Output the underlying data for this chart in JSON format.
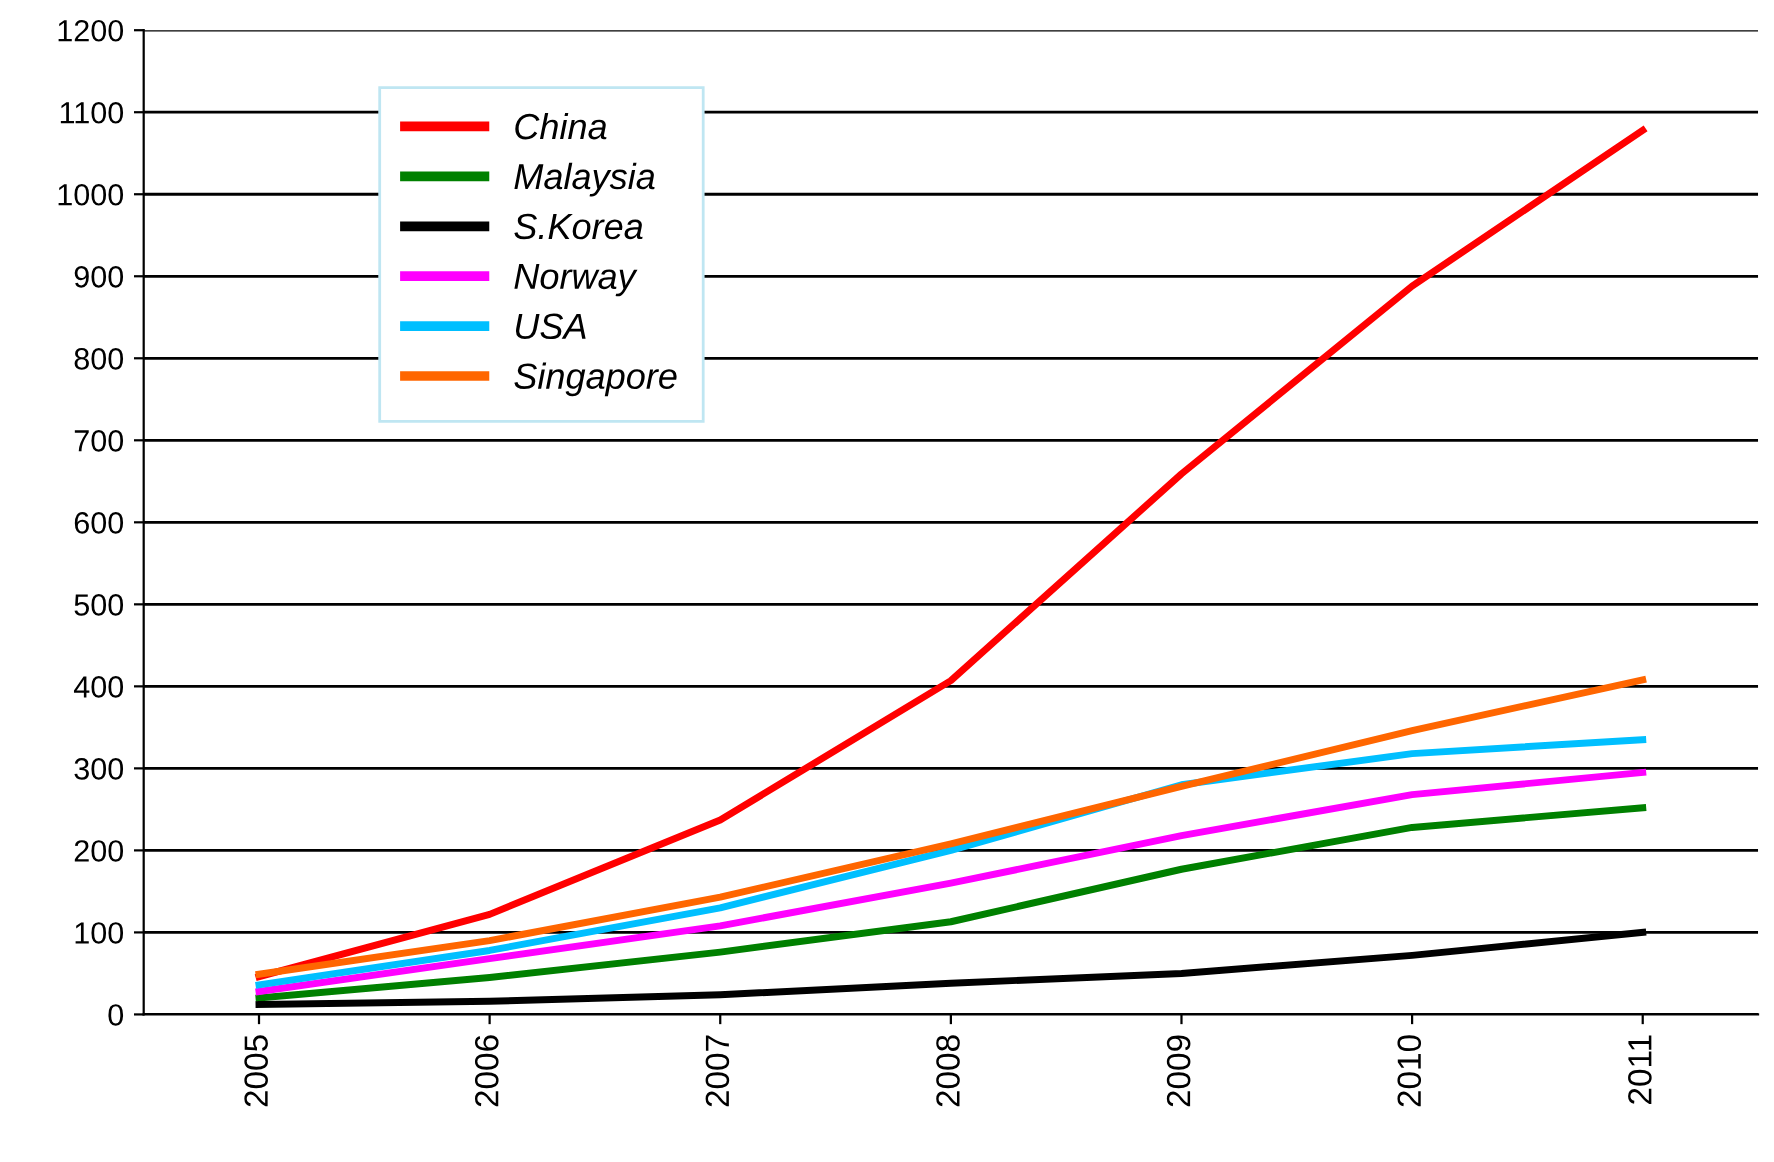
{
  "chart_data": {
    "type": "line",
    "categories": [
      "2005",
      "2006",
      "2007",
      "2008",
      "2009",
      "2010",
      "2011"
    ],
    "series": [
      {
        "name": "China",
        "color": "#ff0000",
        "values": [
          46,
          122,
          237,
          407,
          659,
          888,
          1078
        ]
      },
      {
        "name": "Malaysia",
        "color": "#008000",
        "values": [
          20,
          45,
          76,
          113,
          177,
          228,
          252
        ]
      },
      {
        "name": "S.Korea",
        "color": "#000000",
        "values": [
          12,
          16,
          24,
          38,
          50,
          72,
          100
        ]
      },
      {
        "name": "Norway",
        "color": "#ff00ff",
        "values": [
          28,
          68,
          108,
          160,
          218,
          268,
          295
        ]
      },
      {
        "name": "USA",
        "color": "#00bfff",
        "values": [
          36,
          78,
          130,
          200,
          280,
          318,
          335
        ]
      },
      {
        "name": "Singapore",
        "color": "#ff6600",
        "values": [
          49,
          90,
          143,
          208,
          278,
          346,
          408
        ]
      }
    ],
    "ylim": [
      0,
      1200
    ],
    "yticks": [
      0,
      100,
      200,
      300,
      400,
      500,
      600,
      700,
      800,
      900,
      1000,
      1100,
      1200
    ],
    "grid": "y",
    "legend": "top left",
    "marker": "none",
    "line_style": "solid"
  }
}
